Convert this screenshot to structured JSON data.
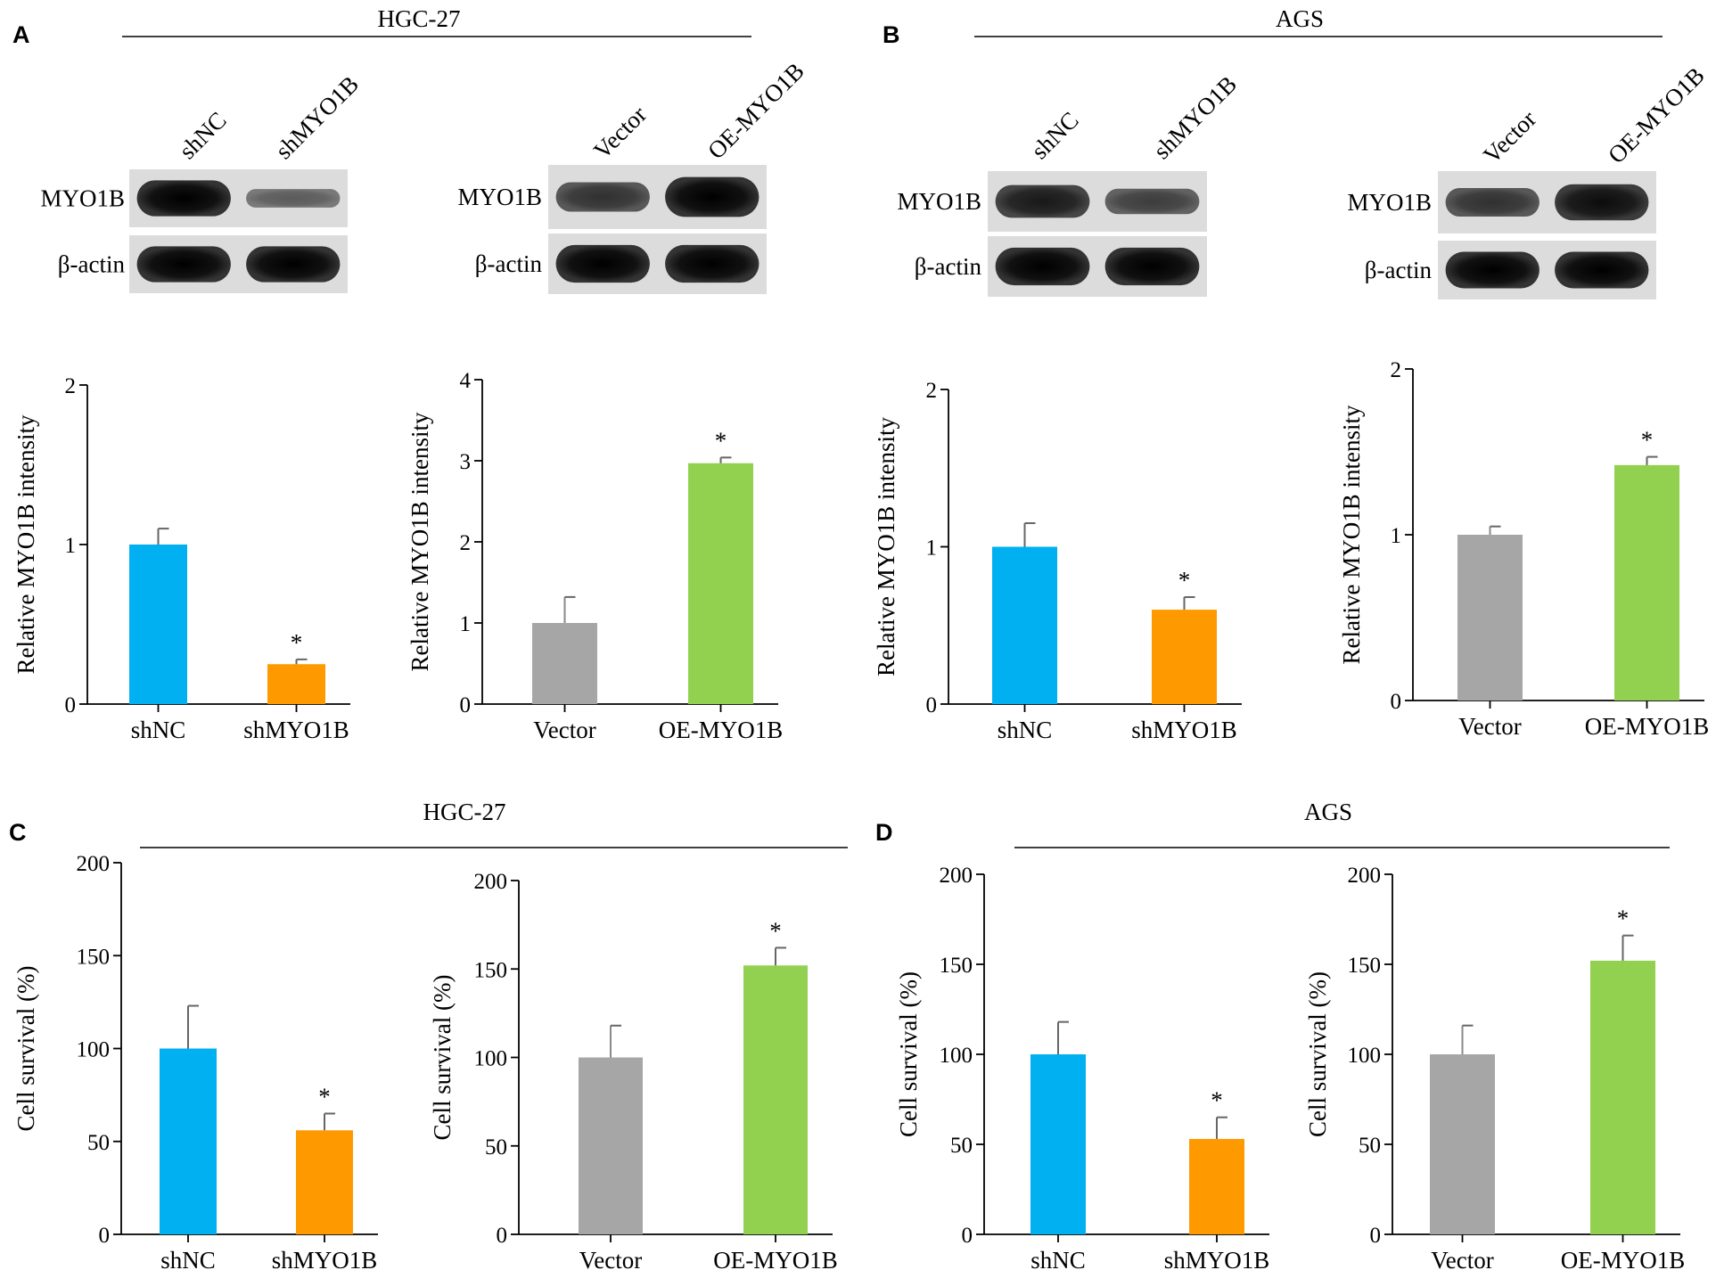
{
  "panels": {
    "A": {
      "letter": "A",
      "cell_line": "HGC-27"
    },
    "B": {
      "letter": "B",
      "cell_line": "AGS"
    },
    "C": {
      "letter": "C",
      "cell_line": "HGC-27"
    },
    "D": {
      "letter": "D",
      "cell_line": "AGS"
    }
  },
  "blots": [
    {
      "lanes": [
        "shNC",
        "shMYO1B"
      ],
      "rows": [
        {
          "label": "MYO1B",
          "intensity": [
            1.0,
            0.25
          ]
        },
        {
          "label": "β-actin",
          "intensity": [
            1.0,
            1.0
          ]
        }
      ]
    },
    {
      "lanes": [
        "Vector",
        "OE-MYO1B"
      ],
      "rows": [
        {
          "label": "MYO1B",
          "intensity": [
            0.6,
            1.0
          ]
        },
        {
          "label": "β-actin",
          "intensity": [
            1.0,
            1.0
          ]
        }
      ]
    },
    {
      "lanes": [
        "shNC",
        "shMYO1B"
      ],
      "rows": [
        {
          "label": "MYO1B",
          "intensity": [
            0.8,
            0.5
          ]
        },
        {
          "label": "β-actin",
          "intensity": [
            1.0,
            1.0
          ]
        }
      ]
    },
    {
      "lanes": [
        "Vector",
        "OE-MYO1B"
      ],
      "rows": [
        {
          "label": "MYO1B",
          "intensity": [
            0.6,
            0.9
          ]
        },
        {
          "label": "β-actin",
          "intensity": [
            1.0,
            1.0
          ]
        }
      ]
    }
  ],
  "chart_data": [
    {
      "type": "bar",
      "panel": "A",
      "categories": [
        "shNC",
        "shMYO1B"
      ],
      "values": [
        1.0,
        0.25
      ],
      "errors": [
        0.1,
        0.03
      ],
      "significance": [
        "",
        "*"
      ],
      "colors": [
        "#00b0f0",
        "#ff9900"
      ],
      "ylabel": "Relative MYO1B intensity",
      "ylim": [
        0,
        2
      ],
      "yticks": [
        0,
        1,
        2
      ]
    },
    {
      "type": "bar",
      "panel": "A",
      "categories": [
        "Vector",
        "OE-MYO1B"
      ],
      "values": [
        1.0,
        2.97
      ],
      "errors": [
        0.32,
        0.07
      ],
      "significance": [
        "",
        "*"
      ],
      "colors": [
        "#a6a6a6",
        "#92d050"
      ],
      "ylabel": "Relative MYO1B intensity",
      "ylim": [
        0,
        4
      ],
      "yticks": [
        0,
        1,
        2,
        3,
        4
      ]
    },
    {
      "type": "bar",
      "panel": "B",
      "categories": [
        "shNC",
        "shMYO1B"
      ],
      "values": [
        1.0,
        0.6
      ],
      "errors": [
        0.15,
        0.08
      ],
      "significance": [
        "",
        "*"
      ],
      "colors": [
        "#00b0f0",
        "#ff9900"
      ],
      "ylabel": "Relative MYO1B intensity",
      "ylim": [
        0,
        2
      ],
      "yticks": [
        0,
        1,
        2
      ]
    },
    {
      "type": "bar",
      "panel": "B",
      "categories": [
        "Vector",
        "OE-MYO1B"
      ],
      "values": [
        1.0,
        1.42
      ],
      "errors": [
        0.05,
        0.05
      ],
      "significance": [
        "",
        "*"
      ],
      "colors": [
        "#a6a6a6",
        "#92d050"
      ],
      "ylabel": "Relative MYO1B intensity",
      "ylim": [
        0,
        2
      ],
      "yticks": [
        0,
        1,
        2
      ]
    },
    {
      "type": "bar",
      "panel": "C",
      "categories": [
        "shNC",
        "shMYO1B"
      ],
      "values": [
        100,
        56
      ],
      "errors": [
        23,
        9
      ],
      "significance": [
        "",
        "*"
      ],
      "colors": [
        "#00b0f0",
        "#ff9900"
      ],
      "ylabel": "Cell survival (%)",
      "ylim": [
        0,
        200
      ],
      "yticks": [
        0,
        50,
        100,
        150,
        200
      ]
    },
    {
      "type": "bar",
      "panel": "C",
      "categories": [
        "Vector",
        "OE-MYO1B"
      ],
      "values": [
        100,
        152
      ],
      "errors": [
        18,
        10
      ],
      "significance": [
        "",
        "*"
      ],
      "colors": [
        "#a6a6a6",
        "#92d050"
      ],
      "ylabel": "Cell survival (%)",
      "ylim": [
        0,
        200
      ],
      "yticks": [
        0,
        50,
        100,
        150,
        200
      ]
    },
    {
      "type": "bar",
      "panel": "D",
      "categories": [
        "shNC",
        "shMYO1B"
      ],
      "values": [
        100,
        53
      ],
      "errors": [
        18,
        12
      ],
      "significance": [
        "",
        "*"
      ],
      "colors": [
        "#00b0f0",
        "#ff9900"
      ],
      "ylabel": "Cell survival (%)",
      "ylim": [
        0,
        200
      ],
      "yticks": [
        0,
        50,
        100,
        150,
        200
      ]
    },
    {
      "type": "bar",
      "panel": "D",
      "categories": [
        "Vector",
        "OE-MYO1B"
      ],
      "values": [
        100,
        152
      ],
      "errors": [
        16,
        14
      ],
      "significance": [
        "",
        "*"
      ],
      "colors": [
        "#a6a6a6",
        "#92d050"
      ],
      "ylabel": "Cell survival (%)",
      "ylim": [
        0,
        200
      ],
      "yticks": [
        0,
        50,
        100,
        150,
        200
      ]
    }
  ]
}
